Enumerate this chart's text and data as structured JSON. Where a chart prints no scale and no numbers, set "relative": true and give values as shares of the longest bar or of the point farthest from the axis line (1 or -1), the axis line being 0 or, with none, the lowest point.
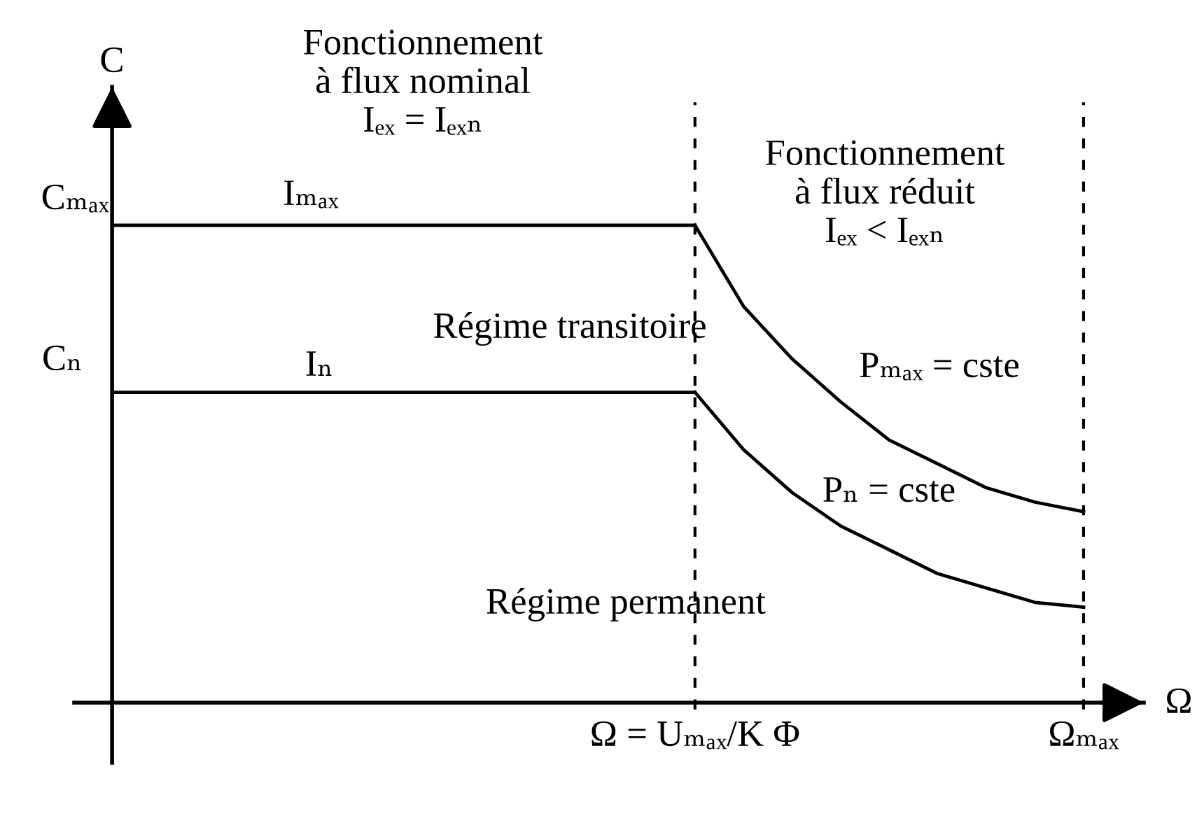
{
  "chart_data": {
    "type": "line",
    "relative": true,
    "xlabel": "Ω",
    "ylabel": "C",
    "categories": [
      null,
      null,
      null,
      null,
      null,
      null,
      null,
      null,
      null,
      null,
      null,
      null,
      "Ω = Uₘₐₓ/K Φ",
      null,
      null,
      null,
      null,
      null,
      null,
      null,
      "Ωₘₐₓ"
    ],
    "series": [
      {
        "name": "Iₘₐₓ",
        "color": "#000000",
        "values": [
          1,
          1,
          1,
          1,
          1,
          1,
          1,
          1,
          1,
          1,
          1,
          1,
          1,
          null,
          null,
          null,
          null,
          null,
          null,
          null,
          null
        ]
      },
      {
        "name": "Pₘₐₓ = cste",
        "color": "#000000",
        "values": [
          null,
          null,
          null,
          null,
          null,
          null,
          null,
          null,
          null,
          null,
          null,
          null,
          1,
          0.83,
          0.72,
          0.63,
          0.55,
          0.5,
          0.45,
          0.42,
          0.4
        ]
      },
      {
        "name": "Iₙ",
        "color": "#000000",
        "values": [
          0.65,
          0.65,
          0.65,
          0.65,
          0.65,
          0.65,
          0.65,
          0.65,
          0.65,
          0.65,
          0.65,
          0.65,
          0.65,
          null,
          null,
          null,
          null,
          null,
          null,
          null,
          null
        ]
      },
      {
        "name": "Pₙ = cste",
        "color": "#000000",
        "values": [
          null,
          null,
          null,
          null,
          null,
          null,
          null,
          null,
          null,
          null,
          null,
          null,
          0.65,
          0.53,
          0.44,
          0.37,
          0.32,
          0.27,
          0.24,
          0.21,
          0.2
        ]
      }
    ],
    "ref_lines": [
      {
        "axis": "x",
        "value": "Ω = Uₘₐₓ/K Φ",
        "color": "#000000",
        "line_style": "dashed"
      },
      {
        "axis": "x",
        "value": "Ωₘₐₓ",
        "color": "#000000",
        "line_style": "dashed"
      }
    ],
    "annotations": [
      "Cₘₐₓ",
      "Cₙ",
      "Fonctionnement\nà flux nominal\nIₑₓ = Iₑₓₙ",
      "Fonctionnement\nà flux réduit\nIₑₓ < Iₑₓₙ",
      "Régime transitoire",
      "Régime permanent"
    ]
  }
}
